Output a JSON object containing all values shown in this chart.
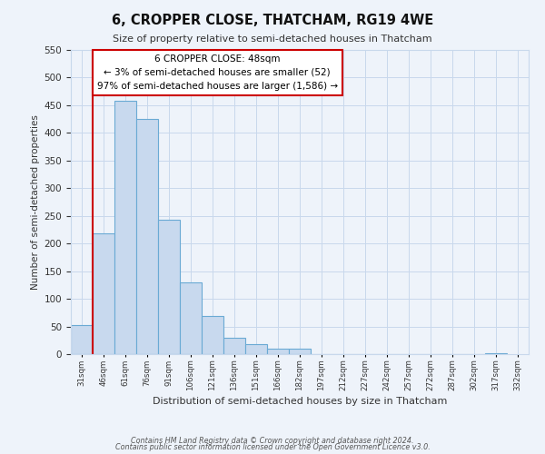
{
  "title": "6, CROPPER CLOSE, THATCHAM, RG19 4WE",
  "subtitle": "Size of property relative to semi-detached houses in Thatcham",
  "xlabel": "Distribution of semi-detached houses by size in Thatcham",
  "ylabel": "Number of semi-detached properties",
  "bar_values": [
    52,
    218,
    458,
    425,
    243,
    129,
    69,
    29,
    18,
    10,
    10,
    0,
    0,
    0,
    0,
    0,
    0,
    0,
    0,
    2
  ],
  "bin_labels": [
    "31sqm",
    "46sqm",
    "61sqm",
    "76sqm",
    "91sqm",
    "106sqm",
    "121sqm",
    "136sqm",
    "151sqm",
    "166sqm",
    "182sqm",
    "197sqm",
    "212sqm",
    "227sqm",
    "242sqm",
    "257sqm",
    "272sqm",
    "287sqm",
    "302sqm",
    "317sqm",
    "332sqm"
  ],
  "bar_color": "#c8d9ee",
  "bar_edge_color": "#6aaad4",
  "vline_color": "#cc0000",
  "annotation_title": "6 CROPPER CLOSE: 48sqm",
  "annotation_line1": "← 3% of semi-detached houses are smaller (52)",
  "annotation_line2": "97% of semi-detached houses are larger (1,586) →",
  "annotation_box_facecolor": "#ffffff",
  "annotation_box_edgecolor": "#cc0000",
  "ylim": [
    0,
    550
  ],
  "yticks": [
    0,
    50,
    100,
    150,
    200,
    250,
    300,
    350,
    400,
    450,
    500,
    550
  ],
  "grid_color": "#c8d8ec",
  "bg_color": "#eef3fa",
  "footer1": "Contains HM Land Registry data © Crown copyright and database right 2024.",
  "footer2": "Contains public sector information licensed under the Open Government Licence v3.0."
}
